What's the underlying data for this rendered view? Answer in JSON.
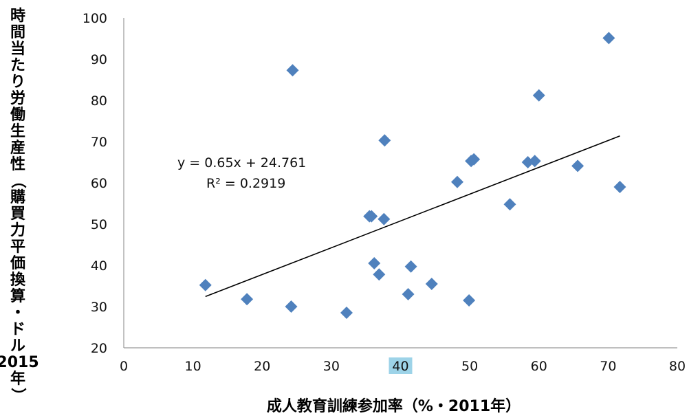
{
  "chart_data": {
    "type": "scatter",
    "xlabel": "成人教育訓練参加率（%・2011年）",
    "ylabel": "時間当たり労働生産性（購買力平価換算・ドル2015年）",
    "xlim": [
      0,
      80
    ],
    "ylim": [
      20,
      100
    ],
    "x_ticks": [
      0,
      10,
      20,
      30,
      40,
      50,
      60,
      70,
      80
    ],
    "y_ticks": [
      20,
      30,
      40,
      50,
      60,
      70,
      80,
      90,
      100
    ],
    "highlighted_x_tick": 40,
    "grid": false,
    "marker_color": "#4F81BD",
    "trendline_color": "#000000",
    "highlight_color": "#9DD3E8",
    "points": [
      {
        "x": 11.8,
        "y": 35.2
      },
      {
        "x": 17.8,
        "y": 31.8
      },
      {
        "x": 24.2,
        "y": 30.0
      },
      {
        "x": 24.4,
        "y": 87.3
      },
      {
        "x": 32.2,
        "y": 28.5
      },
      {
        "x": 35.5,
        "y": 51.9
      },
      {
        "x": 35.8,
        "y": 51.9
      },
      {
        "x": 36.2,
        "y": 40.5
      },
      {
        "x": 36.9,
        "y": 37.8
      },
      {
        "x": 37.6,
        "y": 51.2
      },
      {
        "x": 37.7,
        "y": 70.3
      },
      {
        "x": 41.1,
        "y": 33.0
      },
      {
        "x": 41.5,
        "y": 39.7
      },
      {
        "x": 44.5,
        "y": 35.5
      },
      {
        "x": 48.2,
        "y": 60.2
      },
      {
        "x": 49.9,
        "y": 31.5
      },
      {
        "x": 50.2,
        "y": 65.3
      },
      {
        "x": 50.6,
        "y": 65.7
      },
      {
        "x": 55.8,
        "y": 54.8
      },
      {
        "x": 58.4,
        "y": 65.0
      },
      {
        "x": 59.4,
        "y": 65.3
      },
      {
        "x": 60.0,
        "y": 81.2
      },
      {
        "x": 65.6,
        "y": 64.1
      },
      {
        "x": 70.1,
        "y": 95.1
      },
      {
        "x": 71.7,
        "y": 59.0
      }
    ],
    "trendline": {
      "slope": 0.65,
      "intercept": 24.761,
      "x_range": [
        11.8,
        71.7
      ],
      "equation": "y = 0.65x + 24.761",
      "r_squared": "R² = 0.2919"
    }
  }
}
